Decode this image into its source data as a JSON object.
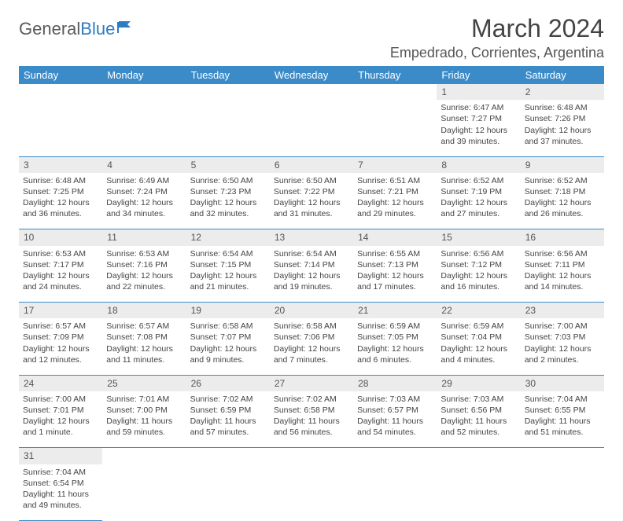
{
  "logo": {
    "text1": "General",
    "text2": "Blue"
  },
  "title": "March 2024",
  "location": "Empedrado, Corrientes, Argentina",
  "colors": {
    "header_bg": "#3b8bc9",
    "header_fg": "#ffffff",
    "daynum_bg": "#ececec",
    "border": "#3b8bc9",
    "logo_blue": "#2d7bc0"
  },
  "day_headers": [
    "Sunday",
    "Monday",
    "Tuesday",
    "Wednesday",
    "Thursday",
    "Friday",
    "Saturday"
  ],
  "weeks": [
    [
      null,
      null,
      null,
      null,
      null,
      {
        "n": "1",
        "sr": "6:47 AM",
        "ss": "7:27 PM",
        "dl": "12 hours and 39 minutes."
      },
      {
        "n": "2",
        "sr": "6:48 AM",
        "ss": "7:26 PM",
        "dl": "12 hours and 37 minutes."
      }
    ],
    [
      {
        "n": "3",
        "sr": "6:48 AM",
        "ss": "7:25 PM",
        "dl": "12 hours and 36 minutes."
      },
      {
        "n": "4",
        "sr": "6:49 AM",
        "ss": "7:24 PM",
        "dl": "12 hours and 34 minutes."
      },
      {
        "n": "5",
        "sr": "6:50 AM",
        "ss": "7:23 PM",
        "dl": "12 hours and 32 minutes."
      },
      {
        "n": "6",
        "sr": "6:50 AM",
        "ss": "7:22 PM",
        "dl": "12 hours and 31 minutes."
      },
      {
        "n": "7",
        "sr": "6:51 AM",
        "ss": "7:21 PM",
        "dl": "12 hours and 29 minutes."
      },
      {
        "n": "8",
        "sr": "6:52 AM",
        "ss": "7:19 PM",
        "dl": "12 hours and 27 minutes."
      },
      {
        "n": "9",
        "sr": "6:52 AM",
        "ss": "7:18 PM",
        "dl": "12 hours and 26 minutes."
      }
    ],
    [
      {
        "n": "10",
        "sr": "6:53 AM",
        "ss": "7:17 PM",
        "dl": "12 hours and 24 minutes."
      },
      {
        "n": "11",
        "sr": "6:53 AM",
        "ss": "7:16 PM",
        "dl": "12 hours and 22 minutes."
      },
      {
        "n": "12",
        "sr": "6:54 AM",
        "ss": "7:15 PM",
        "dl": "12 hours and 21 minutes."
      },
      {
        "n": "13",
        "sr": "6:54 AM",
        "ss": "7:14 PM",
        "dl": "12 hours and 19 minutes."
      },
      {
        "n": "14",
        "sr": "6:55 AM",
        "ss": "7:13 PM",
        "dl": "12 hours and 17 minutes."
      },
      {
        "n": "15",
        "sr": "6:56 AM",
        "ss": "7:12 PM",
        "dl": "12 hours and 16 minutes."
      },
      {
        "n": "16",
        "sr": "6:56 AM",
        "ss": "7:11 PM",
        "dl": "12 hours and 14 minutes."
      }
    ],
    [
      {
        "n": "17",
        "sr": "6:57 AM",
        "ss": "7:09 PM",
        "dl": "12 hours and 12 minutes."
      },
      {
        "n": "18",
        "sr": "6:57 AM",
        "ss": "7:08 PM",
        "dl": "12 hours and 11 minutes."
      },
      {
        "n": "19",
        "sr": "6:58 AM",
        "ss": "7:07 PM",
        "dl": "12 hours and 9 minutes."
      },
      {
        "n": "20",
        "sr": "6:58 AM",
        "ss": "7:06 PM",
        "dl": "12 hours and 7 minutes."
      },
      {
        "n": "21",
        "sr": "6:59 AM",
        "ss": "7:05 PM",
        "dl": "12 hours and 6 minutes."
      },
      {
        "n": "22",
        "sr": "6:59 AM",
        "ss": "7:04 PM",
        "dl": "12 hours and 4 minutes."
      },
      {
        "n": "23",
        "sr": "7:00 AM",
        "ss": "7:03 PM",
        "dl": "12 hours and 2 minutes."
      }
    ],
    [
      {
        "n": "24",
        "sr": "7:00 AM",
        "ss": "7:01 PM",
        "dl": "12 hours and 1 minute."
      },
      {
        "n": "25",
        "sr": "7:01 AM",
        "ss": "7:00 PM",
        "dl": "11 hours and 59 minutes."
      },
      {
        "n": "26",
        "sr": "7:02 AM",
        "ss": "6:59 PM",
        "dl": "11 hours and 57 minutes."
      },
      {
        "n": "27",
        "sr": "7:02 AM",
        "ss": "6:58 PM",
        "dl": "11 hours and 56 minutes."
      },
      {
        "n": "28",
        "sr": "7:03 AM",
        "ss": "6:57 PM",
        "dl": "11 hours and 54 minutes."
      },
      {
        "n": "29",
        "sr": "7:03 AM",
        "ss": "6:56 PM",
        "dl": "11 hours and 52 minutes."
      },
      {
        "n": "30",
        "sr": "7:04 AM",
        "ss": "6:55 PM",
        "dl": "11 hours and 51 minutes."
      }
    ],
    [
      {
        "n": "31",
        "sr": "7:04 AM",
        "ss": "6:54 PM",
        "dl": "11 hours and 49 minutes."
      },
      null,
      null,
      null,
      null,
      null,
      null
    ]
  ],
  "labels": {
    "sunrise": "Sunrise:",
    "sunset": "Sunset:",
    "daylight": "Daylight:"
  }
}
